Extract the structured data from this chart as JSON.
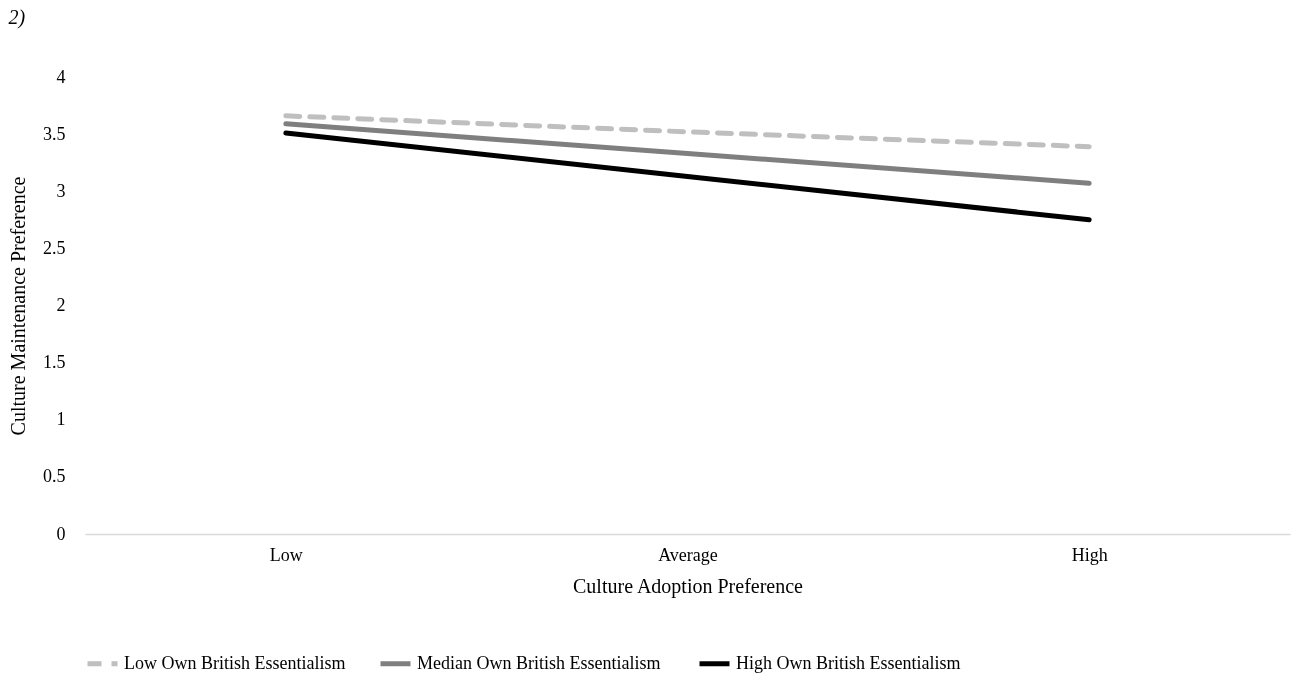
{
  "chart_data": {
    "type": "line",
    "title": "2)",
    "xlabel": "Culture Adoption Preference",
    "ylabel": "Culture Maintenance Preference",
    "categories": [
      "Low",
      "Average",
      "High"
    ],
    "series": [
      {
        "name": "Low Own British Essentialism",
        "color": "#bfbfbf",
        "line_style": "dashed",
        "values": [
          3.66,
          3.52,
          3.39
        ]
      },
      {
        "name": "Median Own British  Essentialism",
        "color": "#7f7f7f",
        "line_style": "solid",
        "values": [
          3.59,
          3.33,
          3.07
        ]
      },
      {
        "name": "High Own British Essentialism",
        "color": "#000000",
        "line_style": "solid",
        "values": [
          3.51,
          3.13,
          2.75
        ]
      }
    ],
    "ylim": [
      0,
      4
    ],
    "yticks": [
      0,
      0.5,
      1,
      1.5,
      2,
      2.5,
      3,
      3.5,
      4
    ],
    "legend": "bottom"
  }
}
